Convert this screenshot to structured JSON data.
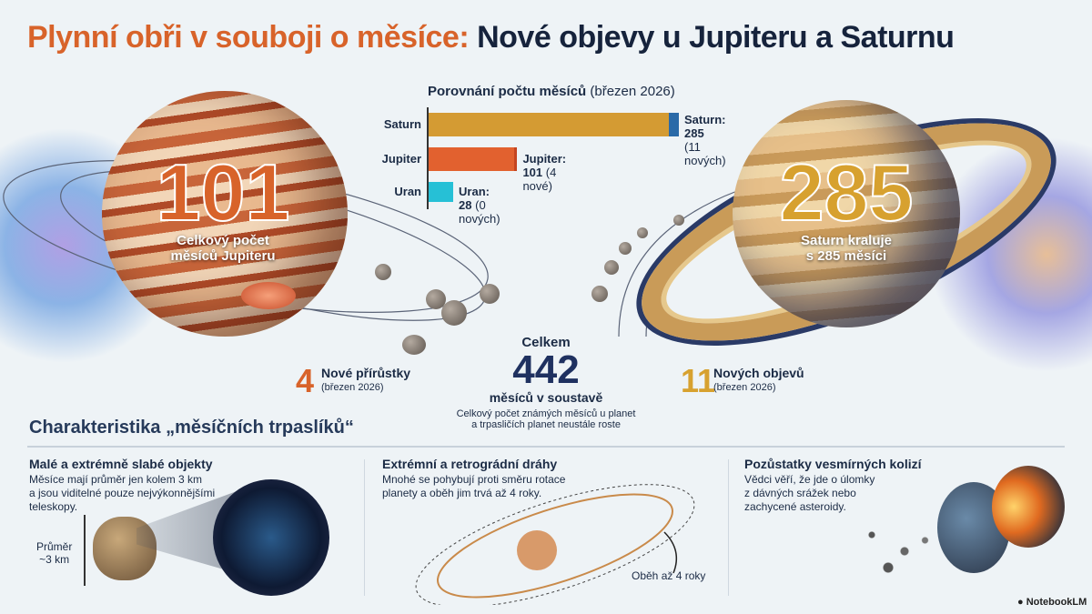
{
  "title": {
    "part1": "Plynní obři v souboji o měsíce:",
    "part2": "Nové objevy u Jupiteru a Saturnu"
  },
  "jupiter": {
    "count": "101",
    "caption1": "Celkový počet",
    "caption2": "měsíců Jupiteru",
    "new_count": "4",
    "new_label": "Nové přírůstky",
    "new_date": "(březen 2026)"
  },
  "saturn": {
    "count": "285",
    "caption1": "Saturn kraluje",
    "caption2": "s 285 měsíci",
    "new_count": "11",
    "new_label": "Nových objevů",
    "new_date": "(březen 2026)"
  },
  "total": {
    "label_top": "Celkem",
    "count": "442",
    "label_bottom": "měsíců v soustavě",
    "note1": "Celkový počet známých měsíců u planet",
    "note2": "a trpasličích planet neustále roste"
  },
  "chart_data": {
    "type": "bar",
    "orientation": "horizontal",
    "stacked": true,
    "title": "Porovnání počtu měsíců",
    "subtitle": "(březen 2026)",
    "categories": [
      "Saturn",
      "Jupiter",
      "Uran"
    ],
    "series": [
      {
        "values": [
          274,
          97,
          28
        ]
      },
      {
        "values": [
          11,
          4,
          0
        ]
      }
    ],
    "data_labels": [
      {
        "main": "Saturn: 285",
        "extra": "(11 nových)"
      },
      {
        "main": "Jupiter: 101",
        "extra": "(4 nové)"
      },
      {
        "main": "Uran: 28",
        "extra": "(0 nových)"
      }
    ],
    "colors": [
      [
        "#d49b33",
        "#2a6aa8"
      ],
      [
        "#e2612f",
        "#c44420"
      ],
      [
        "#26c0d6",
        "#26c0d6"
      ]
    ],
    "xlim": [
      0,
      285
    ]
  },
  "characteristics": {
    "heading": "Charakteristika „měsíčních trpaslíků“",
    "items": [
      {
        "title": "Malé a extrémně slabé objekty",
        "lines": [
          "Měsíce mají průměr jen kolem 3 km",
          "a jsou viditelné pouze nejvýkonnějšími",
          "teleskopy."
        ],
        "extra1": "Průměr",
        "extra2": "~3 km"
      },
      {
        "title": "Extrémní a retrográdní dráhy",
        "lines": [
          "Mnohé se pohybují proti směru rotace",
          "planety a oběh jim trvá až 4 roky."
        ],
        "extra1": "Oběh až 4 roky"
      },
      {
        "title": "Pozůstatky vesmírných kolizí",
        "lines": [
          "Vědci věří, že jde o úlomky",
          "z dávných srážek nebo",
          "zachycené asteroidy."
        ]
      }
    ]
  },
  "watermark": "NotebookLM"
}
